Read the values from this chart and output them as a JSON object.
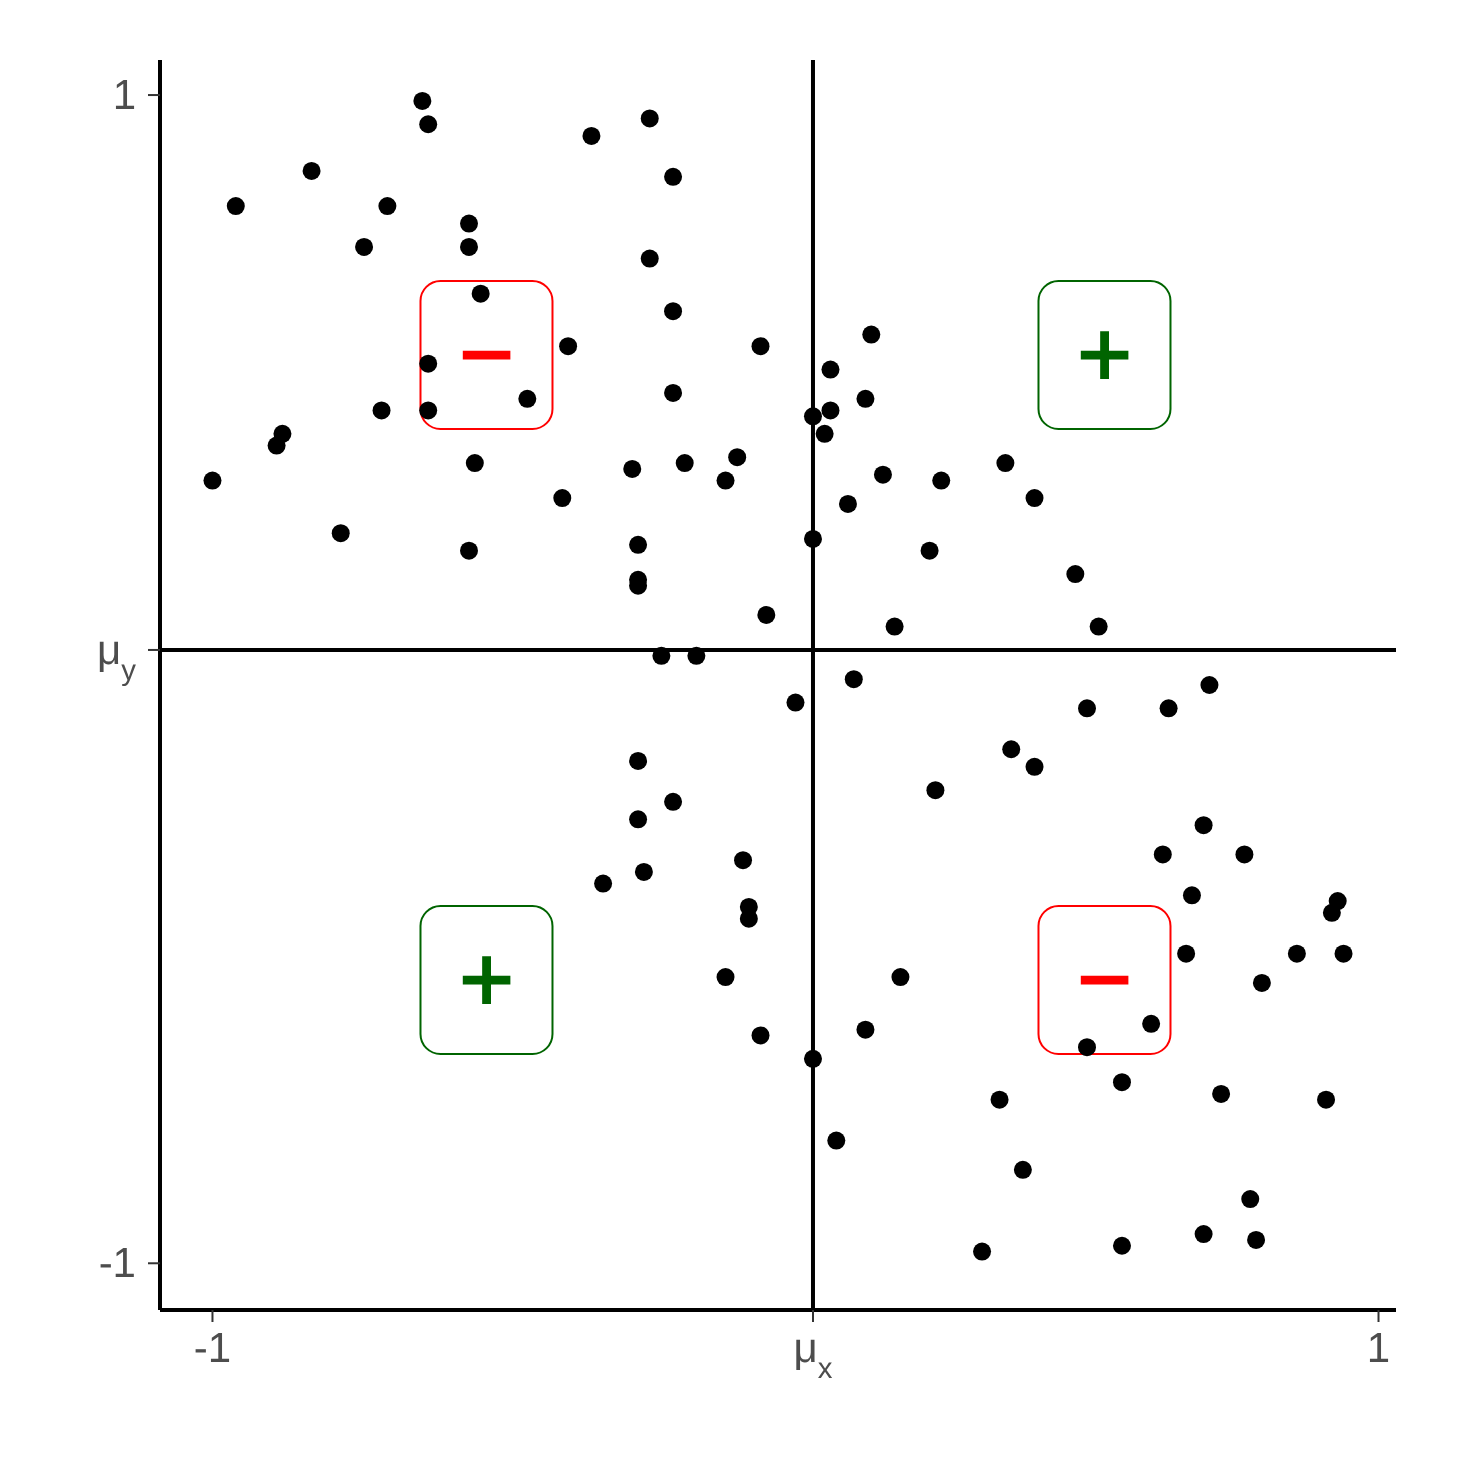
{
  "chart_data": {
    "type": "scatter",
    "marker": "circle",
    "xlim": [
      -1.09,
      1.03
    ],
    "ylim": [
      -1.08,
      1.06
    ],
    "xticks": [
      -1,
      {
        "value": 0.03,
        "label": "μ$_{x}$"
      },
      1
    ],
    "yticks": [
      -1,
      {
        "value": 0.05,
        "label": "μ$_{y}$"
      },
      1
    ],
    "ref_lines": [
      {
        "axis": "x",
        "value": 0.03,
        "color": "#000000"
      },
      {
        "axis": "y",
        "value": 0.05,
        "color": "#000000"
      }
    ],
    "annotations": [
      "−",
      "+",
      "+",
      "−"
    ],
    "series": [
      {
        "color": "#000000",
        "x": [
          -0.64,
          -0.63,
          -0.83,
          -0.96,
          -0.7,
          -0.74,
          -0.56,
          -0.56,
          -0.54,
          -0.35,
          -0.25,
          -0.21,
          -0.25,
          -0.21,
          -0.39,
          -0.06,
          -0.63,
          -0.46,
          -0.21,
          0.03,
          -0.71,
          -0.63,
          -0.88,
          -0.89,
          -1.0,
          -0.55,
          -0.28,
          -0.19,
          -0.1,
          -0.12,
          -0.4,
          -0.78,
          -0.56,
          -0.27,
          -0.27,
          -0.27,
          -0.05,
          0.03,
          -0.23,
          -0.17,
          0.13,
          0.06,
          0.12,
          0.06,
          0.05,
          0.15,
          0.25,
          0.36,
          0.09,
          0.41,
          0.23,
          0.48,
          0.17,
          0.52,
          0.0,
          -0.27,
          -0.21,
          -0.27,
          -0.09,
          -0.33,
          -0.26,
          -0.08,
          -0.08,
          -0.12,
          -0.06,
          0.03,
          0.1,
          0.5,
          0.64,
          0.71,
          0.37,
          0.41,
          0.24,
          0.7,
          0.63,
          0.77,
          0.68,
          0.93,
          0.92,
          0.67,
          0.86,
          0.94,
          0.18,
          0.8,
          0.61,
          0.12,
          0.5,
          0.56,
          0.35,
          0.73,
          0.91,
          0.07,
          0.39,
          0.78,
          0.7,
          0.79,
          0.56,
          0.32
        ],
        "values": [
          0.99,
          0.95,
          0.87,
          0.81,
          0.81,
          0.74,
          0.78,
          0.74,
          0.66,
          0.93,
          0.96,
          0.86,
          0.72,
          0.63,
          0.57,
          0.57,
          0.54,
          0.48,
          0.49,
          0.45,
          0.46,
          0.46,
          0.42,
          0.4,
          0.34,
          0.37,
          0.36,
          0.37,
          0.38,
          0.34,
          0.31,
          0.25,
          0.22,
          0.23,
          0.17,
          0.16,
          0.11,
          0.24,
          0.04,
          0.04,
          0.59,
          0.53,
          0.48,
          0.46,
          0.42,
          0.35,
          0.34,
          0.37,
          0.3,
          0.31,
          0.22,
          0.18,
          0.09,
          0.09,
          -0.04,
          -0.14,
          -0.21,
          -0.24,
          -0.31,
          -0.35,
          -0.33,
          -0.39,
          -0.41,
          -0.51,
          -0.61,
          -0.65,
          0.0,
          -0.05,
          -0.05,
          -0.01,
          -0.12,
          -0.15,
          -0.19,
          -0.25,
          -0.3,
          -0.3,
          -0.37,
          -0.38,
          -0.4,
          -0.47,
          -0.47,
          -0.47,
          -0.51,
          -0.52,
          -0.59,
          -0.6,
          -0.63,
          -0.69,
          -0.72,
          -0.71,
          -0.72,
          -0.79,
          -0.84,
          -0.89,
          -0.95,
          -0.96,
          -0.97,
          -0.98
        ]
      }
    ]
  }
}
